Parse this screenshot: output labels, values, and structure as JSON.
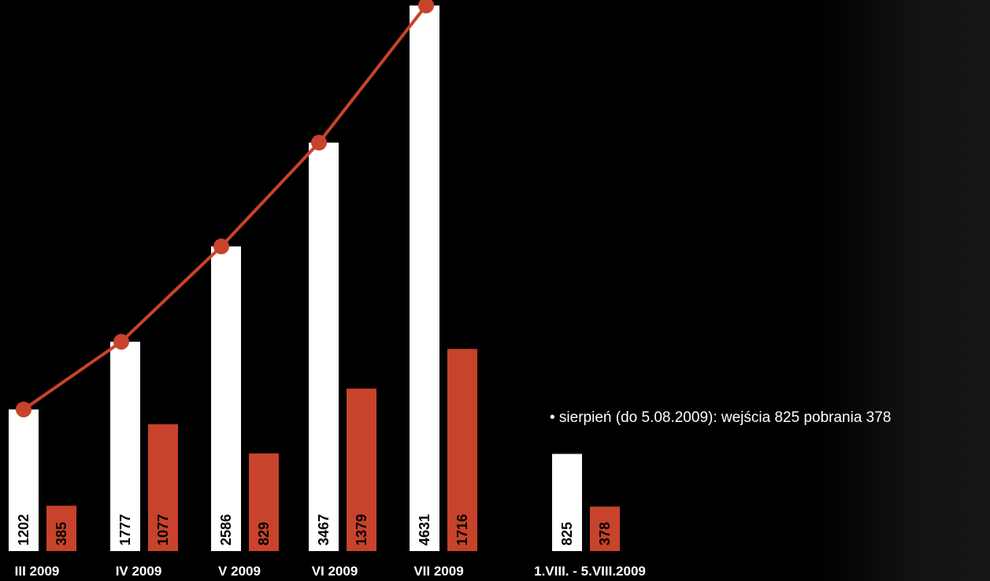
{
  "chart_data": {
    "type": "bar",
    "categories": [
      "III 2009",
      "IV 2009",
      "V 2009",
      "VI 2009",
      "VII 2009",
      "1.VIII. - 5.VIII.2009"
    ],
    "series": [
      {
        "values": [
          1202,
          1777,
          2586,
          3467,
          4631,
          825
        ],
        "color": "#ffffff",
        "label_color": "#000000"
      },
      {
        "values": [
          385,
          1077,
          829,
          1379,
          1716,
          378
        ],
        "color": "#c8432b",
        "label_color": "#000000"
      }
    ],
    "trend_line": {
      "values": [
        1202,
        1777,
        2586,
        3467,
        4631
      ],
      "color": "#c8432b"
    },
    "title": "",
    "xlabel": "",
    "ylabel": "",
    "ylim": [
      0,
      4900
    ],
    "grid": false,
    "legend": "none"
  },
  "note": {
    "text": "• sierpień (do 5.08.2009): wejścia 825 pobrania 378"
  },
  "colors": {
    "background": "#000000",
    "label": "#ffffff",
    "accent": "#c8432b"
  }
}
